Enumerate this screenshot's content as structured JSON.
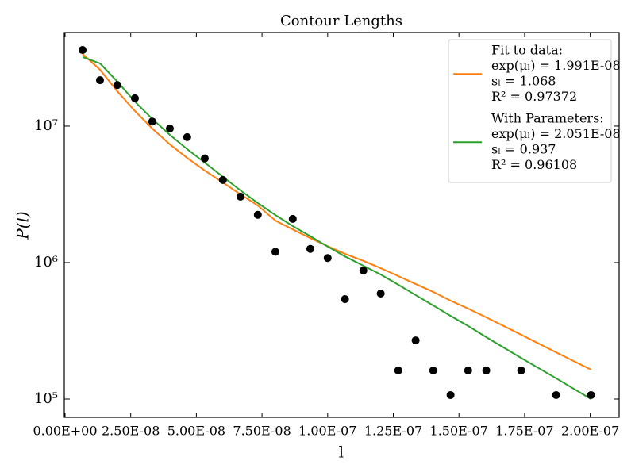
{
  "chart_data": {
    "type": "scatter",
    "title": "Contour Lengths",
    "x_label": "l",
    "y_label": "P(l)",
    "log_y": true,
    "legend_position": "upper right",
    "x": [
      6.65e-09,
      1.33e-08,
      1.99e-08,
      2.66e-08,
      3.32e-08,
      3.99e-08,
      4.65e-08,
      5.32e-08,
      6.01e-08,
      6.68e-08,
      7.34e-08,
      8.01e-08,
      8.67e-08,
      9.34e-08,
      1e-07,
      1.066e-07,
      1.136e-07,
      1.202e-07,
      1.269e-07,
      1.335e-07,
      1.402e-07,
      1.468e-07,
      1.535e-07,
      1.604e-07,
      1.737e-07,
      1.87e-07,
      2.003e-07
    ],
    "values": [
      36100000.0,
      21700000.0,
      20000000.0,
      16000000.0,
      10800000.0,
      9600000.0,
      8300000.0,
      5800000.0,
      4030000.0,
      3040000.0,
      2240000.0,
      1200000.0,
      2090000.0,
      1260000.0,
      1080000.0,
      540000.0,
      875000.0,
      593000.0,
      162000.0,
      269000.0,
      162000.0,
      107000.0,
      162000.0,
      162000.0,
      162000.0,
      107000.0,
      107000.0
    ],
    "color": "#000000",
    "series": [
      {
        "name": "Fit to data:",
        "color": "#ff7f0e",
        "legend_details": [
          "exp(μₗ) = 1.991E-08",
          "sₗ = 1.068",
          "R² = 0.97372"
        ],
        "values": [
          33800000.0,
          25900000.0,
          18000000.0,
          12900000.0,
          9600000.0,
          7350000.0,
          5850000.0,
          4720000.0,
          3860000.0,
          3160000.0,
          2620000.0,
          2030000.0,
          1750000.0,
          1510000.0,
          1320000.0,
          1160000.0,
          1030000.0,
          910000.0,
          796000.0,
          697000.0,
          610000.0,
          526000.0,
          460000.0,
          397000.0,
          296000.0,
          220000.0,
          164000.0
        ]
      },
      {
        "name": "With Parameters:",
        "color": "#2ca02c",
        "legend_details": [
          "exp(μₗ) = 2.051E-08",
          "sₗ = 0.937",
          "R² = 0.96108"
        ],
        "values": [
          32100000.0,
          28800000.0,
          21200000.0,
          15100000.0,
          11300000.0,
          8630000.0,
          6780000.0,
          5400000.0,
          4250000.0,
          3380000.0,
          2730000.0,
          2230000.0,
          1850000.0,
          1560000.0,
          1310000.0,
          1110000.0,
          948000.0,
          818000.0,
          688000.0,
          578000.0,
          485000.0,
          407000.0,
          343000.0,
          284000.0,
          200000.0,
          142000.0,
          100000.0
        ]
      }
    ],
    "xlim": [
      -3e-10,
      2.11e-07
    ],
    "ylim": [
      73500,
      48500000
    ],
    "xticks": [
      {
        "value": 0,
        "label": "0.00E+00"
      },
      {
        "value": 2.5e-08,
        "label": "2.50E-08"
      },
      {
        "value": 5e-08,
        "label": "5.00E-08"
      },
      {
        "value": 7.5e-08,
        "label": "7.50E-08"
      },
      {
        "value": 1e-07,
        "label": "1.00E-07"
      },
      {
        "value": 1.25e-07,
        "label": "1.25E-07"
      },
      {
        "value": 1.5e-07,
        "label": "1.50E-07"
      },
      {
        "value": 1.75e-07,
        "label": "1.75E-07"
      },
      {
        "value": 2e-07,
        "label": "2.00E-07"
      }
    ],
    "yticks": [
      {
        "value": 100000,
        "label": "10⁵"
      },
      {
        "value": 1000000,
        "label": "10⁶"
      },
      {
        "value": 10000000,
        "label": "10⁷"
      }
    ]
  }
}
